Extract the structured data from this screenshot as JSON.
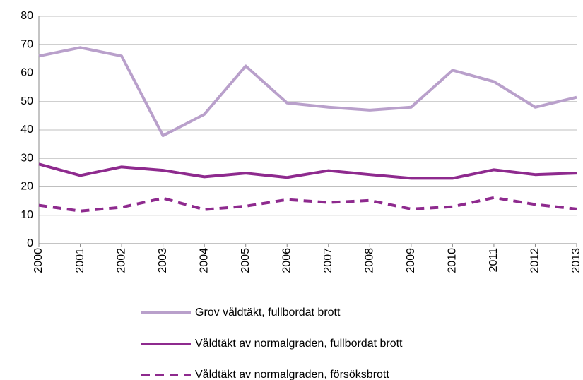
{
  "chart_data": {
    "type": "line",
    "categories": [
      "2000",
      "2001",
      "2002",
      "2003",
      "2004",
      "2005",
      "2006",
      "2007",
      "2008",
      "2009",
      "2010",
      "2011",
      "2012",
      "2013"
    ],
    "series": [
      {
        "name": "Grov våldtäkt, fullbordat brott",
        "color": "#b9a0cb",
        "style": "solid",
        "values": [
          66,
          69,
          66,
          38,
          45.5,
          62.5,
          49.5,
          48,
          47,
          48,
          61,
          57,
          48,
          51.5
        ]
      },
      {
        "name": "Våldtäkt av normalgraden, fullbordat brott",
        "color": "#8e2a8e",
        "style": "solid",
        "values": [
          28,
          24,
          27,
          25.8,
          23.5,
          24.8,
          23.3,
          25.7,
          24.3,
          23,
          23,
          26,
          24.3,
          24.8
        ]
      },
      {
        "name": "Våldtäkt av normalgraden, försöksbrott",
        "color": "#8e2a8e",
        "style": "dashed",
        "values": [
          13.5,
          11.5,
          12.8,
          16,
          12,
          13.2,
          15.5,
          14.5,
          15.2,
          12.2,
          13,
          16.2,
          13.8,
          12.2
        ]
      }
    ],
    "ylim": [
      0,
      80
    ],
    "yticks": [
      0,
      10,
      20,
      30,
      40,
      50,
      60,
      70,
      80
    ],
    "grid": true,
    "legend": "bottom"
  }
}
